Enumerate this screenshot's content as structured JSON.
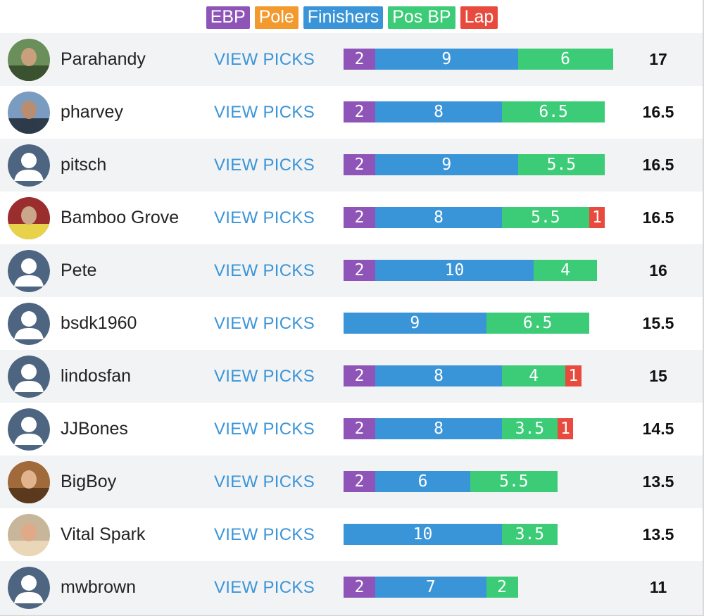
{
  "colors": {
    "ebp": "#8e54b8",
    "pole": "#f39a2e",
    "finishers": "#3a95d8",
    "pos_bp": "#3ccb76",
    "lap": "#e84a3e",
    "link": "#3a95d8"
  },
  "legend": [
    {
      "label": "EBP",
      "key": "ebp"
    },
    {
      "label": "Pole",
      "key": "pole"
    },
    {
      "label": "Finishers",
      "key": "finishers"
    },
    {
      "label": "Pos BP",
      "key": "pos_bp"
    },
    {
      "label": "Lap",
      "key": "lap"
    }
  ],
  "rows": [
    {
      "name": "Parahandy",
      "avatar": "photo-avatar",
      "action": "VIEW PICKS",
      "total": "17",
      "breakdown": {
        "ebp": 2,
        "finishers": 9,
        "pos_bp": 6
      }
    },
    {
      "name": "pharvey",
      "avatar": "photo-avatar",
      "action": "VIEW PICKS",
      "total": "16.5",
      "breakdown": {
        "ebp": 2,
        "finishers": 8,
        "pos_bp": 6.5
      }
    },
    {
      "name": "pitsch",
      "avatar": "default-avatar",
      "action": "VIEW PICKS",
      "total": "16.5",
      "breakdown": {
        "ebp": 2,
        "finishers": 9,
        "pos_bp": 5.5
      }
    },
    {
      "name": "Bamboo Grove",
      "avatar": "photo-avatar",
      "action": "VIEW PICKS",
      "total": "16.5",
      "breakdown": {
        "ebp": 2,
        "finishers": 8,
        "pos_bp": 5.5,
        "lap": 1
      }
    },
    {
      "name": "Pete",
      "avatar": "default-avatar",
      "action": "VIEW PICKS",
      "total": "16",
      "breakdown": {
        "ebp": 2,
        "finishers": 10,
        "pos_bp": 4
      }
    },
    {
      "name": "bsdk1960",
      "avatar": "default-avatar",
      "action": "VIEW PICKS",
      "total": "15.5",
      "breakdown": {
        "finishers": 9,
        "pos_bp": 6.5
      }
    },
    {
      "name": "lindosfan",
      "avatar": "default-avatar",
      "action": "VIEW PICKS",
      "total": "15",
      "breakdown": {
        "ebp": 2,
        "finishers": 8,
        "pos_bp": 4,
        "lap": 1
      }
    },
    {
      "name": "JJBones",
      "avatar": "default-avatar",
      "action": "VIEW PICKS",
      "total": "14.5",
      "breakdown": {
        "ebp": 2,
        "finishers": 8,
        "pos_bp": 3.5,
        "lap": 1
      }
    },
    {
      "name": "BigBoy",
      "avatar": "photo-avatar",
      "action": "VIEW PICKS",
      "total": "13.5",
      "breakdown": {
        "ebp": 2,
        "finishers": 6,
        "pos_bp": 5.5
      }
    },
    {
      "name": "Vital Spark",
      "avatar": "photo-avatar",
      "action": "VIEW PICKS",
      "total": "13.5",
      "breakdown": {
        "finishers": 10,
        "pos_bp": 3.5
      }
    },
    {
      "name": "mwbrown",
      "avatar": "default-avatar",
      "action": "VIEW PICKS",
      "total": "11",
      "breakdown": {
        "ebp": 2,
        "finishers": 7,
        "pos_bp": 2
      }
    }
  ]
}
